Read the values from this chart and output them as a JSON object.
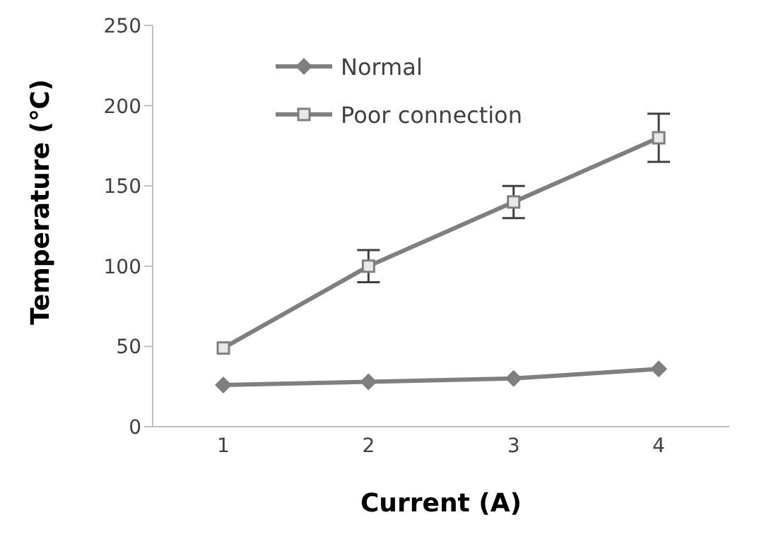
{
  "chart_data": {
    "type": "line",
    "xlabel": "Current (A)",
    "ylabel": "Temperature (℃)",
    "categories": [
      "1",
      "2",
      "3",
      "4"
    ],
    "series": [
      {
        "name": "Normal",
        "color": "#7f7f7f",
        "marker": "diamond",
        "values": [
          26,
          28,
          30,
          36
        ]
      },
      {
        "name": "Poor connection",
        "color": "#7f7f7f",
        "marker": "square",
        "values": [
          49,
          100,
          140,
          180
        ],
        "errors": [
          null,
          10,
          10,
          15
        ]
      }
    ],
    "ylim": [
      0,
      250
    ],
    "yticks": [
      0,
      50,
      100,
      150,
      200,
      250
    ],
    "grid": false,
    "legend": "top left"
  }
}
